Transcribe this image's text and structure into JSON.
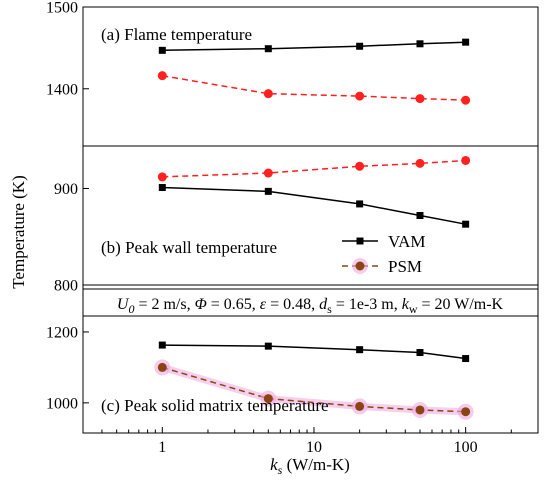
{
  "chart_data": {
    "type": "line",
    "xlabel": {
      "base": "k",
      "sub": "s",
      "unit": " (W/m-K)"
    },
    "ylabel": "Temperature (K)",
    "x": [
      1,
      5,
      20,
      50,
      100
    ],
    "x_scale": "log",
    "xlim": [
      0.3,
      300
    ],
    "xticks": [
      "1",
      "10",
      "100"
    ],
    "colors": {
      "VAM": "#000000",
      "PSM": "#ff2020",
      "PSM_c": "#8b4513",
      "PSM_c_glow": "#f0a8e0"
    },
    "legend": {
      "placement": "panel-b bottom-right",
      "entries": [
        "VAM",
        "PSM"
      ]
    },
    "conditions": {
      "parts": [
        {
          "t": "U",
          "i": true
        },
        {
          "t": "0",
          "sub": true,
          "i": true
        },
        {
          "t": " = 2 m/s, "
        },
        {
          "t": "Φ",
          "i": true
        },
        {
          "t": " = 0.65, "
        },
        {
          "t": "ε",
          "i": true
        },
        {
          "t": " = 0.48, "
        },
        {
          "t": "d",
          "i": true
        },
        {
          "t": "s",
          "sub": true
        },
        {
          "t": " = 1e-3 m, "
        },
        {
          "t": "k",
          "i": true
        },
        {
          "t": "w",
          "sub": true
        },
        {
          "t": " = 20 W/m-K"
        }
      ]
    },
    "panels": [
      {
        "label": "(a) Flame temperature",
        "ylim": [
          1330,
          1500
        ],
        "yticks": [
          1400,
          1500
        ],
        "series": [
          {
            "name": "VAM",
            "values": [
              1447,
              1449,
              1452,
              1455,
              1457
            ],
            "color": "#000000",
            "dash": false,
            "marker": "square"
          },
          {
            "name": "PSM",
            "values": [
              1416,
              1394,
              1391,
              1388,
              1386
            ],
            "color": "#ff2020",
            "dash": true,
            "marker": "circle"
          }
        ]
      },
      {
        "label": "(b) Peak wall temperature",
        "ylim": [
          800,
          944
        ],
        "yticks": [
          800,
          900
        ],
        "series": [
          {
            "name": "VAM",
            "values": [
              901,
              897,
              884,
              872,
              863
            ],
            "color": "#000000",
            "dash": false,
            "marker": "square"
          },
          {
            "name": "PSM",
            "values": [
              912,
              916,
              923,
              926,
              929
            ],
            "color": "#ff2020",
            "dash": true,
            "marker": "circle"
          }
        ]
      },
      {
        "label": "(c) Peak solid matrix temperature",
        "ylim": [
          915,
          1245
        ],
        "yticks": [
          1000,
          1200
        ],
        "series": [
          {
            "name": "VAM",
            "values": [
              1163,
              1160,
              1150,
              1142,
              1125
            ],
            "color": "#000000",
            "dash": false,
            "marker": "square"
          },
          {
            "name": "PSM",
            "values": [
              1100,
              1012,
              990,
              980,
              975
            ],
            "color": "#8b4513",
            "dash": true,
            "marker": "circle",
            "glow": "#f0a8e0"
          }
        ]
      }
    ]
  }
}
